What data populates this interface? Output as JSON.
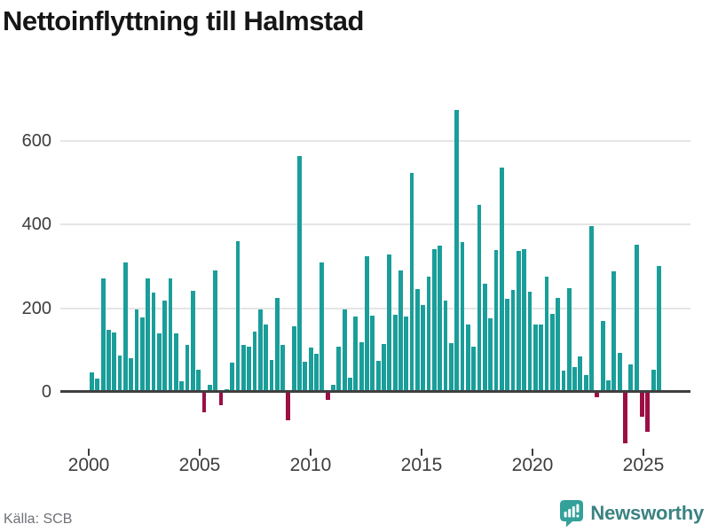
{
  "title": "Nettoinflyttning till Halmstad",
  "source": "Källa: SCB",
  "branding": {
    "logo_text": "Newsworthy",
    "logo_icon": "bar-chart-speech-bubble-icon"
  },
  "colors": {
    "positive": "#1a9e9a",
    "negative": "#9b0f44",
    "axis": "#3f3f3f",
    "grid": "#e5e5e5",
    "title_text": "#161616",
    "tick_label": "#3d3d3d",
    "source_text": "#6e7176",
    "logo_teal": "#34a09a",
    "logo_text_color": "#3a8381"
  },
  "chart_data": {
    "type": "bar",
    "title": "Nettoinflyttning till Halmstad",
    "xlabel": "",
    "ylabel": "",
    "grid": "horizontal",
    "legend": "none",
    "x_tick_labels": [
      "2000",
      "2005",
      "2010",
      "2015",
      "2020",
      "2025"
    ],
    "y_tick_values": [
      0,
      200,
      400,
      600
    ],
    "ylim": [
      -140,
      703
    ],
    "categories": [
      "2000 Q2",
      "2000 Q3",
      "2000 Q4",
      "2001 Q1",
      "2001 Q2",
      "2001 Q3",
      "2001 Q4",
      "2002 Q1",
      "2002 Q2",
      "2002 Q3",
      "2002 Q4",
      "2003 Q1",
      "2003 Q2",
      "2003 Q3",
      "2003 Q4",
      "2004 Q1",
      "2004 Q2",
      "2004 Q3",
      "2004 Q4",
      "2005 Q1",
      "2005 Q2",
      "2005 Q3",
      "2005 Q4",
      "2006 Q1",
      "2006 Q2",
      "2006 Q3",
      "2006 Q4",
      "2007 Q1",
      "2007 Q2",
      "2007 Q3",
      "2007 Q4",
      "2008 Q1",
      "2008 Q2",
      "2008 Q3",
      "2008 Q4",
      "2009 Q1",
      "2009 Q2",
      "2009 Q3",
      "2009 Q4",
      "2010 Q1",
      "2010 Q2",
      "2010 Q3",
      "2010 Q4",
      "2011 Q1",
      "2011 Q2",
      "2011 Q3",
      "2011 Q4",
      "2012 Q1",
      "2012 Q2",
      "2012 Q3",
      "2012 Q4",
      "2013 Q1",
      "2013 Q2",
      "2013 Q3",
      "2013 Q4",
      "2014 Q1",
      "2014 Q2",
      "2014 Q3",
      "2014 Q4",
      "2015 Q1",
      "2015 Q2",
      "2015 Q3",
      "2015 Q4",
      "2016 Q1",
      "2016 Q2",
      "2016 Q3",
      "2016 Q4",
      "2017 Q1",
      "2017 Q2",
      "2017 Q3",
      "2017 Q4",
      "2018 Q1",
      "2018 Q2",
      "2018 Q3",
      "2018 Q4",
      "2019 Q1",
      "2019 Q2",
      "2019 Q3",
      "2019 Q4",
      "2020 Q1",
      "2020 Q2",
      "2020 Q3",
      "2020 Q4",
      "2021 Q1",
      "2021 Q2",
      "2021 Q3",
      "2021 Q4",
      "2022 Q1",
      "2022 Q2",
      "2022 Q3",
      "2022 Q4",
      "2023 Q1",
      "2023 Q2",
      "2023 Q3",
      "2023 Q4",
      "2024 Q1",
      "2024 Q2",
      "2024 Q3",
      "2024 Q4",
      "2025 Q1",
      "2025 Q2",
      "2025 Q3"
    ],
    "values": [
      47,
      31,
      271,
      149,
      141,
      87,
      310,
      81,
      196,
      178,
      271,
      237,
      139,
      218,
      271,
      139,
      25,
      113,
      241,
      53,
      -46,
      16,
      291,
      -30,
      6,
      71,
      359,
      112,
      109,
      145,
      197,
      160,
      76,
      225,
      112,
      -65,
      156,
      563,
      72,
      105,
      91,
      310,
      -17,
      16,
      109,
      196,
      35,
      180,
      119,
      324,
      182,
      75,
      115,
      329,
      185,
      289,
      180,
      523,
      245,
      207,
      275,
      341,
      350,
      219,
      117,
      673,
      358,
      161,
      108,
      446,
      259,
      175,
      339,
      536,
      223,
      244,
      337,
      341,
      240,
      160,
      162,
      275,
      187,
      224,
      50,
      247,
      60,
      85,
      41,
      395,
      -10,
      170,
      28,
      287,
      93,
      -120,
      66,
      352,
      -57,
      -93,
      54,
      301
    ]
  }
}
